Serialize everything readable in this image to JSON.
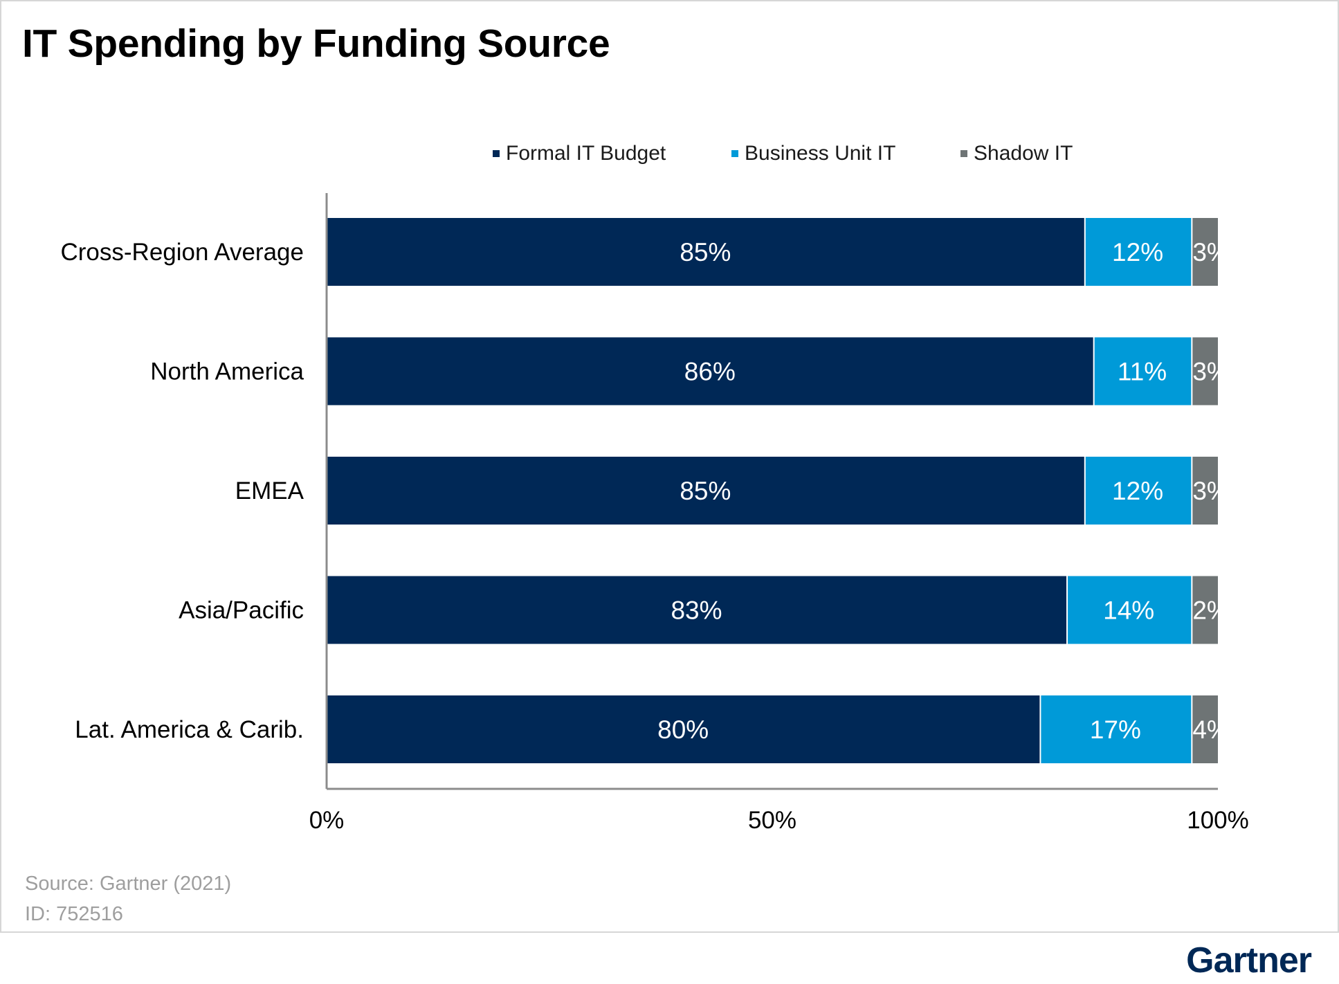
{
  "title": "IT Spending by Funding Source",
  "footer": {
    "source": "Source: Gartner (2021)",
    "id": "ID: 752516"
  },
  "logo_text": "Gartner",
  "colors": {
    "formal": "#002856",
    "business": "#009ad8",
    "shadow": "#6e7475",
    "axis": "#8c8c8c"
  },
  "chart_data": {
    "type": "bar",
    "orientation": "horizontal",
    "stacked": true,
    "categories": [
      "Cross-Region Average",
      "North America",
      "EMEA",
      "Asia/Pacific",
      "Lat. America & Carib."
    ],
    "series": [
      {
        "name": "Formal IT Budget",
        "values": [
          85,
          86,
          85,
          83,
          80
        ],
        "labels": [
          "85%",
          "86%",
          "85%",
          "83%",
          "80%"
        ],
        "color": "#002856"
      },
      {
        "name": "Business Unit IT",
        "values": [
          12,
          11,
          12,
          14,
          17
        ],
        "labels": [
          "12%",
          "11%",
          "12%",
          "14%",
          "17%"
        ],
        "color": "#009ad8"
      },
      {
        "name": "Shadow IT",
        "values": [
          3,
          3,
          3,
          2,
          4
        ],
        "labels": [
          "3%",
          "3%",
          "3%",
          "2%",
          "4%"
        ],
        "color": "#6e7475"
      }
    ],
    "xlim": [
      0,
      100
    ],
    "xticks": [
      0,
      50,
      100
    ],
    "xtick_labels": [
      "0%",
      "50%",
      "100%"
    ],
    "legend_position": "top",
    "grid": false
  }
}
